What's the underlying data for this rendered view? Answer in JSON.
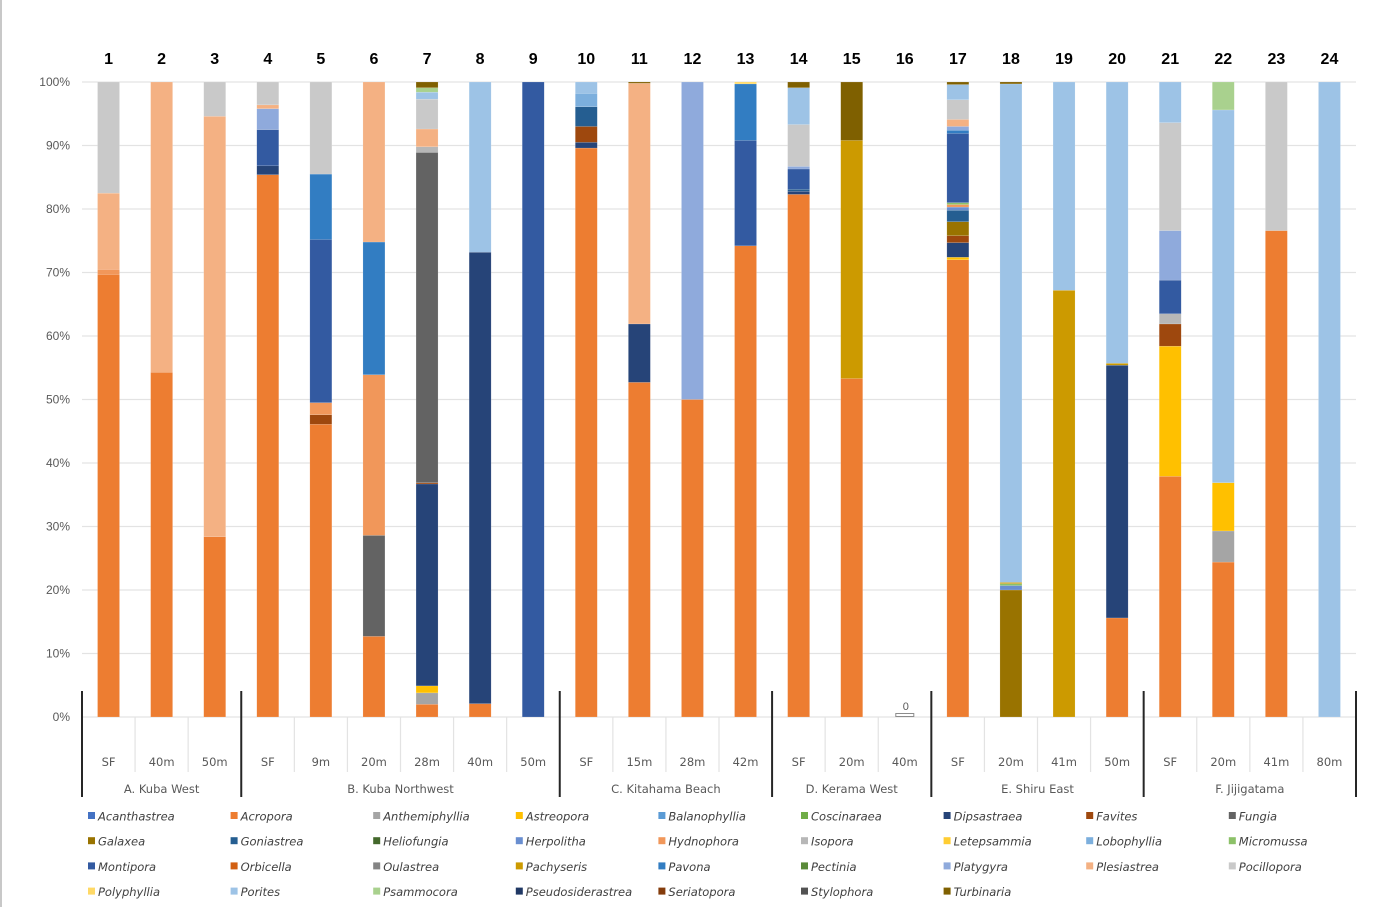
{
  "chart_data": {
    "type": "bar",
    "stacked": true,
    "percent_stacked": true,
    "title": "",
    "xlabel": "",
    "ylabel": "",
    "ylim": [
      0,
      100
    ],
    "y_ticks": [
      "0%",
      "10%",
      "20%",
      "30%",
      "40%",
      "50%",
      "60%",
      "70%",
      "80%",
      "90%",
      "100%"
    ],
    "grid": true,
    "legend_position": "bottom",
    "categories": [
      "1",
      "2",
      "3",
      "4",
      "5",
      "6",
      "7",
      "8",
      "9",
      "10",
      "11",
      "12",
      "13",
      "14",
      "15",
      "16",
      "17",
      "18",
      "19",
      "20",
      "21",
      "22",
      "23",
      "24"
    ],
    "depth_labels": [
      "SF",
      "40m",
      "50m",
      "SF",
      "9m",
      "20m",
      "28m",
      "40m",
      "50m",
      "SF",
      "15m",
      "28m",
      "42m",
      "SF",
      "20m",
      "40m",
      "SF",
      "20m",
      "41m",
      "50m",
      "SF",
      "20m",
      "41m",
      "80m"
    ],
    "groups": [
      {
        "label": "A. Kuba West",
        "count": 3
      },
      {
        "label": "B. Kuba Northwest",
        "count": 6
      },
      {
        "label": "C. Kitahama Beach",
        "count": 4
      },
      {
        "label": "D. Kerama West",
        "count": 3
      },
      {
        "label": "E. Shiru East",
        "count": 4
      },
      {
        "label": "F. Jijigatama",
        "count": 4
      }
    ],
    "annotations": [
      {
        "category": "16",
        "text": "0"
      }
    ],
    "series": [
      {
        "name": "Acanthastrea",
        "color": "#4472C4",
        "values": [
          0,
          0,
          0,
          0,
          0,
          0,
          0,
          0,
          0,
          0,
          0,
          0,
          0,
          0,
          0,
          0,
          0,
          0,
          0,
          0,
          0,
          0,
          0,
          0
        ]
      },
      {
        "name": "Acropora",
        "color": "#ED7D31",
        "values": [
          69.7,
          54.3,
          28.4,
          85.4,
          46.1,
          12.7,
          2.0,
          2.1,
          0,
          89.6,
          52.7,
          50.0,
          74.2,
          82.3,
          53.3,
          0,
          72.0,
          0,
          0,
          15.6,
          37.9,
          24.4,
          76.6,
          0
        ]
      },
      {
        "name": "Anthemiphyllia",
        "color": "#A5A5A5",
        "values": [
          0,
          0,
          0,
          0,
          0,
          0,
          1.8,
          0,
          0,
          0,
          0,
          0,
          0,
          0,
          0,
          0,
          0,
          0,
          0,
          0,
          0,
          4.9,
          0,
          0
        ]
      },
      {
        "name": "Astreopora",
        "color": "#FFC000",
        "values": [
          0,
          0,
          0,
          0,
          0,
          0,
          1.1,
          0,
          0,
          0,
          0,
          0,
          0,
          0,
          0,
          0,
          0.4,
          0,
          0,
          0,
          20.5,
          7.6,
          0,
          0
        ]
      },
      {
        "name": "Balanophyllia",
        "color": "#5B9BD5",
        "values": [
          0,
          0,
          0,
          0,
          0,
          0,
          0,
          0,
          0,
          0,
          0,
          0,
          0,
          0,
          0,
          0,
          0,
          0,
          0,
          0,
          0,
          0,
          0,
          0
        ]
      },
      {
        "name": "Coscinaraea",
        "color": "#70AD47",
        "values": [
          0,
          0,
          0,
          0,
          0,
          0,
          0,
          0,
          0,
          0,
          0,
          0,
          0,
          0,
          0,
          0,
          0,
          0,
          0,
          0,
          0,
          0,
          0,
          0
        ]
      },
      {
        "name": "Dipsastraea",
        "color": "#264478",
        "values": [
          0,
          0,
          0,
          1.4,
          0,
          0,
          31.8,
          71.1,
          0,
          0.9,
          9.2,
          0,
          0,
          0.5,
          0,
          0,
          2.3,
          0,
          0,
          39.8,
          0,
          0,
          0,
          0
        ]
      },
      {
        "name": "Favites",
        "color": "#9E480E",
        "values": [
          0,
          0,
          0,
          0,
          1.5,
          0,
          0.2,
          0,
          0,
          2.5,
          0,
          0,
          0,
          0,
          0,
          0,
          1.1,
          0,
          0,
          0,
          3.5,
          0,
          0,
          0
        ]
      },
      {
        "name": "Fungia",
        "color": "#636363",
        "values": [
          0,
          0,
          0,
          0,
          0,
          15.9,
          52.0,
          0,
          0,
          0,
          0,
          0,
          0,
          0,
          0,
          0,
          0,
          0,
          0,
          0,
          0,
          0,
          0,
          0
        ]
      },
      {
        "name": "Galaxea",
        "color": "#997300",
        "values": [
          0,
          0,
          0,
          0,
          0,
          0,
          0,
          0,
          0,
          0,
          0,
          0,
          0,
          0,
          0,
          0,
          2.2,
          20.0,
          0,
          0,
          0,
          0,
          0,
          0
        ]
      },
      {
        "name": "Goniastrea",
        "color": "#255E91",
        "values": [
          0,
          0,
          0,
          0,
          0,
          0,
          0,
          0,
          0,
          3.1,
          0,
          0,
          0,
          0.3,
          0,
          0,
          1.8,
          0,
          0,
          0,
          0,
          0,
          0,
          0
        ]
      },
      {
        "name": "Heliofungia",
        "color": "#43682B",
        "values": [
          0,
          0,
          0,
          0,
          0,
          0,
          0,
          0,
          0,
          0,
          0,
          0,
          0,
          0,
          0,
          0,
          0,
          0,
          0,
          0,
          0,
          0,
          0,
          0
        ]
      },
      {
        "name": "Herpolitha",
        "color": "#698ED0",
        "values": [
          0,
          0,
          0,
          0,
          0,
          0,
          0,
          0,
          0,
          0,
          0,
          0,
          0,
          0,
          0,
          0,
          0.5,
          0.7,
          0,
          0,
          0,
          0,
          0,
          0
        ]
      },
      {
        "name": "Hydnophora",
        "color": "#F1975A",
        "values": [
          0.8,
          0,
          0,
          0,
          1.9,
          25.3,
          0,
          0,
          0,
          0,
          0,
          0,
          0,
          0,
          0,
          0,
          0.4,
          0,
          0,
          0,
          0,
          0,
          0,
          0
        ]
      },
      {
        "name": "Isopora",
        "color": "#B7B7B7",
        "values": [
          0,
          0,
          0,
          0,
          0,
          0,
          0.9,
          0,
          0,
          0,
          0,
          0,
          0,
          0,
          0,
          0,
          0,
          0,
          0,
          0,
          1.6,
          0,
          0,
          0
        ]
      },
      {
        "name": "Letepsammia",
        "color": "#FFCD33",
        "values": [
          0,
          0,
          0,
          0,
          0,
          0,
          0,
          0,
          0,
          0,
          0,
          0,
          0,
          0,
          0,
          0,
          0,
          0,
          0,
          0,
          0,
          0,
          0,
          0
        ]
      },
      {
        "name": "Lobophyllia",
        "color": "#7CAFDD",
        "values": [
          0,
          0,
          0,
          0,
          0,
          0,
          0,
          0,
          0,
          2.1,
          0,
          0,
          0,
          0,
          0,
          0,
          0,
          0,
          0,
          0,
          0,
          0,
          0,
          0
        ]
      },
      {
        "name": "Micromussa",
        "color": "#8CC168",
        "values": [
          0,
          0,
          0,
          0,
          0,
          0,
          0,
          0,
          0,
          0,
          0,
          0,
          0,
          0,
          0,
          0,
          0.3,
          0.3,
          0,
          0,
          0,
          0,
          0,
          0
        ]
      },
      {
        "name": "Montipora",
        "color": "#335AA1",
        "values": [
          0,
          0,
          0,
          5.7,
          25.7,
          0,
          0,
          0,
          100,
          0,
          0,
          0,
          16.6,
          3.2,
          0,
          0,
          10.9,
          0,
          0,
          0,
          5.3,
          0,
          0,
          0
        ]
      },
      {
        "name": "Orbicella",
        "color": "#D26012",
        "values": [
          0,
          0,
          0,
          0,
          0,
          0,
          0,
          0,
          0,
          0,
          0,
          0,
          0,
          0,
          0,
          0,
          0,
          0,
          0,
          0,
          0,
          0,
          0,
          0
        ]
      },
      {
        "name": "Oulastrea",
        "color": "#848484",
        "values": [
          0,
          0,
          0,
          0,
          0,
          0,
          0,
          0,
          0,
          0,
          0,
          0,
          0,
          0,
          0,
          0,
          0,
          0,
          0,
          0,
          0,
          0,
          0,
          0
        ]
      },
      {
        "name": "Pachyseris",
        "color": "#CC9A00",
        "values": [
          0,
          0,
          0,
          0,
          0,
          0,
          0,
          0,
          0,
          0,
          0,
          0,
          0,
          0,
          37.5,
          0,
          0,
          0.2,
          67.2,
          0.3,
          0,
          0,
          0,
          0
        ]
      },
      {
        "name": "Pavona",
        "color": "#327DC2",
        "values": [
          0,
          0,
          0,
          0,
          10.3,
          20.9,
          0,
          0,
          0,
          0,
          0,
          0,
          8.9,
          0,
          0,
          0,
          0.5,
          0,
          0,
          0,
          0,
          0,
          0,
          0
        ]
      },
      {
        "name": "Pectinia",
        "color": "#5A8A39",
        "values": [
          0,
          0,
          0,
          0,
          0,
          0,
          0,
          0,
          0,
          0,
          0,
          0,
          0,
          0,
          0,
          0,
          0,
          0,
          0,
          0,
          0,
          0,
          0,
          0
        ]
      },
      {
        "name": "Platygyra",
        "color": "#8FAADC",
        "values": [
          0,
          0,
          0,
          3.3,
          0,
          0,
          0,
          0,
          0,
          0,
          0,
          50.0,
          0,
          0.4,
          0,
          0,
          0.6,
          0,
          0,
          0,
          7.8,
          0,
          0,
          0
        ]
      },
      {
        "name": "Plesiastrea",
        "color": "#F4B183",
        "values": [
          12.0,
          45.7,
          66.2,
          0.6,
          0,
          25.2,
          2.8,
          0,
          0,
          0,
          37.9,
          0,
          0,
          0,
          0,
          0,
          1.1,
          0,
          0,
          0,
          0,
          0,
          0,
          0
        ]
      },
      {
        "name": "Pocillopora",
        "color": "#C9C9C9",
        "values": [
          17.5,
          0,
          5.4,
          3.6,
          14.5,
          0,
          4.7,
          0,
          0,
          0,
          0,
          0,
          0,
          6.6,
          0,
          0,
          3.1,
          0,
          0,
          0,
          17.0,
          0,
          23.4,
          0
        ]
      },
      {
        "name": "Polyphyllia",
        "color": "#FFD966",
        "values": [
          0,
          0,
          0,
          0,
          0,
          0,
          0,
          0,
          0,
          0,
          0,
          0,
          0.3,
          0,
          0,
          0,
          0,
          0,
          0,
          0,
          0,
          0,
          0,
          0
        ]
      },
      {
        "name": "Porites",
        "color": "#9DC3E6",
        "values": [
          0,
          0,
          0,
          0,
          0,
          0,
          1.1,
          26.8,
          0,
          1.8,
          0,
          0,
          0,
          5.8,
          0,
          0,
          2.4,
          78.5,
          32.8,
          44.3,
          6.4,
          58.7,
          0,
          100
        ]
      },
      {
        "name": "Psammocora",
        "color": "#A9D18E",
        "values": [
          0,
          0,
          0,
          0,
          0,
          0,
          0.7,
          0,
          0,
          0,
          0,
          0,
          0,
          0,
          0,
          0,
          0,
          0,
          0,
          0,
          0,
          4.4,
          0,
          0
        ]
      },
      {
        "name": "Pseudosiderastrea",
        "color": "#203864",
        "values": [
          0,
          0,
          0,
          0,
          0,
          0,
          0,
          0,
          0,
          0,
          0,
          0,
          0,
          0,
          0,
          0,
          0,
          0,
          0,
          0,
          0,
          0,
          0,
          0
        ]
      },
      {
        "name": "Seriatopora",
        "color": "#843C0C",
        "values": [
          0,
          0,
          0,
          0,
          0,
          0,
          0,
          0,
          0,
          0,
          0,
          0,
          0,
          0,
          0,
          0,
          0,
          0,
          0,
          0,
          0,
          0,
          0,
          0
        ]
      },
      {
        "name": "Stylophora",
        "color": "#525252",
        "values": [
          0,
          0,
          0,
          0,
          0,
          0,
          0,
          0,
          0,
          0,
          0,
          0,
          0,
          0,
          0,
          0,
          0,
          0,
          0,
          0,
          0,
          0,
          0,
          0
        ]
      },
      {
        "name": "Turbinaria",
        "color": "#7F6000",
        "values": [
          0,
          0,
          0,
          0,
          0,
          0,
          0.9,
          0,
          0,
          0,
          0.2,
          0,
          0,
          0.9,
          9.2,
          0,
          0.4,
          0.3,
          0,
          0,
          0,
          0,
          0,
          0
        ]
      }
    ]
  }
}
